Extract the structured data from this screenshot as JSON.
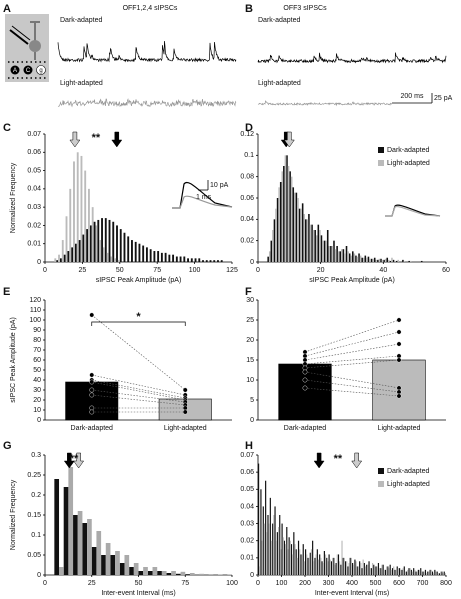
{
  "panels": {
    "A": {
      "label": "A",
      "title": "OFF1,2,4 sIPSCs",
      "trace_labels": [
        "Dark-adapted",
        "Light-adapted"
      ],
      "cell_labels": [
        "A",
        "C",
        "g"
      ]
    },
    "B": {
      "label": "B",
      "title": "OFF3 sIPSCs",
      "trace_labels": [
        "Dark-adapted",
        "Light-adapted"
      ],
      "scale_bar": [
        "200 ms",
        "25 pA"
      ]
    }
  },
  "chart_data": [
    {
      "type": "histogram",
      "panel_label": "C",
      "xlabel": "sIPSC Peak Amplitude (pA)",
      "ylabel": "Normalized Frequency",
      "xlim": [
        0,
        125
      ],
      "xticks": [
        0,
        25,
        50,
        75,
        100,
        125
      ],
      "ylim": [
        0,
        0.07
      ],
      "yticks": [
        0,
        0.01,
        0.02,
        0.03,
        0.04,
        0.05,
        0.06,
        0.07
      ],
      "bins": [
        0,
        2.5,
        5,
        7.5,
        10,
        12.5,
        15,
        17.5,
        20,
        22.5,
        25,
        27.5,
        30,
        32.5,
        35,
        37.5,
        40,
        42.5,
        45,
        47.5,
        50,
        52.5,
        55,
        57.5,
        60,
        62.5,
        65,
        67.5,
        70,
        72.5,
        75,
        77.5,
        80,
        82.5,
        85,
        87.5,
        90,
        92.5,
        95,
        97.5,
        100,
        102.5,
        105,
        107.5,
        110,
        112.5,
        115,
        117.5,
        120,
        122.5,
        125
      ],
      "series": [
        {
          "color": "#111111",
          "values": [
            0,
            0,
            0,
            0.001,
            0.002,
            0.004,
            0.006,
            0.008,
            0.01,
            0.012,
            0.015,
            0.018,
            0.02,
            0.022,
            0.023,
            0.024,
            0.024,
            0.023,
            0.022,
            0.02,
            0.018,
            0.016,
            0.014,
            0.012,
            0.011,
            0.01,
            0.009,
            0.008,
            0.007,
            0.006,
            0.006,
            0.005,
            0.005,
            0.004,
            0.004,
            0.003,
            0.003,
            0.003,
            0.002,
            0.002,
            0.002,
            0.002,
            0.001,
            0.001,
            0.001,
            0.001,
            0.001,
            0.001,
            0,
            0
          ]
        },
        {
          "color": "#bbbbbb",
          "values": [
            0,
            0,
            0.002,
            0.004,
            0.012,
            0.025,
            0.04,
            0.055,
            0.06,
            0.058,
            0.05,
            0.04,
            0.03,
            0.02,
            0.012,
            0.008,
            0.005,
            0.003,
            0.002,
            0.001,
            0,
            0,
            0,
            0,
            0,
            0,
            0,
            0,
            0,
            0,
            0,
            0,
            0,
            0,
            0,
            0,
            0,
            0,
            0,
            0,
            0,
            0,
            0,
            0,
            0,
            0,
            0,
            0,
            0,
            0
          ]
        }
      ],
      "arrows": [
        {
          "x": 20,
          "color": "#cccccc"
        },
        {
          "x": 48,
          "color": "#000000"
        }
      ],
      "annotation": "**",
      "inset_scale": [
        "10 pA",
        "1 ms"
      ]
    },
    {
      "type": "histogram",
      "panel_label": "D",
      "xlabel": "sIPSC Peak Amplitude (pA)",
      "xlim": [
        0,
        60
      ],
      "xticks": [
        0,
        20,
        40,
        60
      ],
      "ylim": [
        0,
        0.12
      ],
      "yticks": [
        0,
        0.02,
        0.04,
        0.06,
        0.08,
        0.1,
        0.12
      ],
      "bins": [
        0,
        1,
        2,
        3,
        4,
        5,
        6,
        7,
        8,
        9,
        10,
        11,
        12,
        13,
        14,
        15,
        16,
        17,
        18,
        19,
        20,
        21,
        22,
        23,
        24,
        25,
        26,
        27,
        28,
        29,
        30,
        31,
        32,
        33,
        34,
        35,
        36,
        37,
        38,
        39,
        40,
        41,
        42,
        43,
        44,
        45,
        46,
        47,
        48,
        49,
        50,
        51,
        52,
        53,
        54,
        55,
        56,
        57,
        58,
        59,
        60
      ],
      "series": [
        {
          "name": "Dark-adapted",
          "color": "#111111",
          "values": [
            0,
            0,
            0,
            0.005,
            0.02,
            0.04,
            0.06,
            0.075,
            0.09,
            0.1,
            0.085,
            0.07,
            0.065,
            0.05,
            0.055,
            0.04,
            0.045,
            0.035,
            0.03,
            0.035,
            0.025,
            0.02,
            0.03,
            0.015,
            0.02,
            0.015,
            0.01,
            0.012,
            0.015,
            0.008,
            0.01,
            0.006,
            0.008,
            0.004,
            0.006,
            0.005,
            0.003,
            0.004,
            0.002,
            0.003,
            0.002,
            0.004,
            0.001,
            0.002,
            0.001,
            0,
            0.002,
            0,
            0.001,
            0,
            0,
            0,
            0.001,
            0,
            0,
            0,
            0,
            0,
            0,
            0
          ]
        },
        {
          "name": "Light-adapted",
          "color": "#bbbbbb",
          "values": [
            0,
            0,
            0,
            0.01,
            0.03,
            0.05,
            0.07,
            0.085,
            0.1,
            0.09,
            0.08,
            0.065,
            0.06,
            0.05,
            0.045,
            0.04,
            0.035,
            0.03,
            0.025,
            0.03,
            0.02,
            0.02,
            0.015,
            0.015,
            0.012,
            0.01,
            0.012,
            0.008,
            0.01,
            0.006,
            0.008,
            0.005,
            0.006,
            0.004,
            0.004,
            0.003,
            0.003,
            0.002,
            0.003,
            0.002,
            0.003,
            0.002,
            0.004,
            0.001,
            0.002,
            0,
            0.001,
            0,
            0.001,
            0,
            0,
            0,
            0,
            0,
            0,
            0,
            0,
            0,
            0,
            0
          ]
        }
      ],
      "arrows": [
        {
          "x": 9,
          "color": "#000000"
        },
        {
          "x": 10,
          "color": "#cccccc"
        }
      ],
      "legend": "top-right"
    },
    {
      "type": "bar",
      "panel_label": "E",
      "ylabel": "sIPSC Peak Amplitude (pA)",
      "categories": [
        "Dark-adapted",
        "Light-adapted"
      ],
      "values": [
        38,
        21
      ],
      "colors": [
        "#000000",
        "#bbbbbb"
      ],
      "ylim": [
        0,
        120
      ],
      "yticks": [
        0,
        10,
        20,
        30,
        40,
        50,
        60,
        70,
        80,
        90,
        100,
        110,
        120
      ],
      "pairs": [
        [
          105,
          30
        ],
        [
          45,
          25
        ],
        [
          40,
          22
        ],
        [
          38,
          20
        ],
        [
          30,
          18
        ],
        [
          25,
          15
        ],
        [
          12,
          12
        ],
        [
          8,
          8
        ]
      ],
      "annotation": "*"
    },
    {
      "type": "bar",
      "panel_label": "F",
      "categories": [
        "Dark-adapted",
        "Light-adapted"
      ],
      "values": [
        14,
        15
      ],
      "colors": [
        "#000000",
        "#bbbbbb"
      ],
      "ylim": [
        0,
        30
      ],
      "yticks": [
        0,
        5,
        10,
        15,
        20,
        25,
        30
      ],
      "pairs": [
        [
          17,
          25
        ],
        [
          16,
          22
        ],
        [
          15,
          19
        ],
        [
          14,
          16
        ],
        [
          13,
          15
        ],
        [
          12,
          8
        ],
        [
          10,
          7
        ],
        [
          8,
          6
        ]
      ]
    },
    {
      "type": "histogram",
      "panel_label": "G",
      "xlabel": "Inter-event Interval (ms)",
      "ylabel": "Normalized Frequency",
      "xlim": [
        0,
        100
      ],
      "xticks": [
        0,
        25,
        50,
        75,
        100
      ],
      "ylim": [
        0,
        0.3
      ],
      "yticks": [
        0,
        0.05,
        0.1,
        0.15,
        0.2,
        0.25,
        0.3
      ],
      "bins": [
        0,
        5,
        10,
        15,
        20,
        25,
        30,
        35,
        40,
        45,
        50,
        55,
        60,
        65,
        70,
        75,
        80,
        85,
        90,
        95,
        100
      ],
      "series": [
        {
          "color": "#111111",
          "values": [
            0,
            0.24,
            0.22,
            0.15,
            0.13,
            0.07,
            0.05,
            0.05,
            0.03,
            0.02,
            0.01,
            0.01,
            0.01,
            0.005,
            0.003,
            0.002,
            0,
            0,
            0,
            0
          ]
        },
        {
          "color": "#aaaaaa",
          "values": [
            0,
            0.02,
            0.27,
            0.16,
            0.14,
            0.11,
            0.08,
            0.06,
            0.05,
            0.03,
            0.02,
            0.02,
            0.01,
            0.01,
            0.008,
            0.005,
            0.003,
            0.002,
            0.001,
            0.001
          ]
        }
      ],
      "arrows": [
        {
          "x": 13,
          "color": "#000000"
        },
        {
          "x": 18,
          "color": "#cccccc"
        }
      ],
      "annotation": "**"
    },
    {
      "type": "histogram",
      "panel_label": "H",
      "xlabel": "Inter-event Interval (ms)",
      "xlim": [
        0,
        800
      ],
      "xticks": [
        0,
        100,
        200,
        300,
        400,
        500,
        600,
        700,
        800
      ],
      "ylim": [
        0,
        0.07
      ],
      "yticks": [
        0,
        0.01,
        0.02,
        0.03,
        0.04,
        0.05,
        0.06,
        0.07
      ],
      "bins": [
        0,
        10,
        20,
        30,
        40,
        50,
        60,
        70,
        80,
        90,
        100,
        110,
        120,
        130,
        140,
        150,
        160,
        170,
        180,
        190,
        200,
        210,
        220,
        230,
        240,
        250,
        260,
        270,
        280,
        290,
        300,
        310,
        320,
        330,
        340,
        350,
        360,
        370,
        380,
        390,
        400,
        410,
        420,
        430,
        440,
        450,
        460,
        470,
        480,
        490,
        500,
        510,
        520,
        530,
        540,
        550,
        560,
        570,
        580,
        590,
        600,
        610,
        620,
        630,
        640,
        650,
        660,
        670,
        680,
        690,
        700,
        710,
        720,
        730,
        740,
        750,
        760,
        770,
        780,
        790,
        800
      ],
      "series": [
        {
          "name": "Dark-adapted",
          "color": "#111111",
          "values": [
            0.065,
            0.05,
            0.04,
            0.055,
            0.035,
            0.045,
            0.03,
            0.04,
            0.025,
            0.035,
            0.03,
            0.02,
            0.028,
            0.022,
            0.018,
            0.025,
            0.015,
            0.02,
            0.012,
            0.018,
            0.015,
            0.01,
            0.013,
            0.02,
            0.01,
            0.015,
            0.012,
            0.008,
            0.014,
            0.01,
            0.012,
            0.008,
            0.01,
            0.007,
            0.012,
            0.006,
            0.01,
            0.008,
            0.005,
            0.01,
            0.007,
            0.009,
            0.005,
            0.008,
            0.004,
            0.007,
            0.006,
            0.008,
            0.004,
            0.006,
            0.005,
            0.007,
            0.004,
            0.006,
            0.003,
            0.005,
            0.006,
            0.004,
            0.003,
            0.005,
            0.004,
            0.003,
            0.005,
            0.002,
            0.004,
            0.003,
            0.004,
            0.002,
            0.003,
            0.004,
            0.002,
            0.003,
            0.002,
            0.003,
            0.002,
            0.003,
            0.002,
            0.001,
            0.002,
            0.002
          ]
        },
        {
          "name": "Light-adapted",
          "color": "#bbbbbb",
          "values": [
            0.005,
            0.02,
            0.03,
            0.025,
            0.03,
            0.02,
            0.035,
            0.02,
            0.028,
            0.015,
            0.022,
            0.018,
            0.015,
            0.02,
            0.012,
            0.018,
            0.01,
            0.015,
            0.012,
            0.008,
            0.012,
            0.01,
            0.015,
            0.008,
            0.012,
            0.009,
            0.01,
            0.007,
            0.012,
            0.008,
            0.009,
            0.01,
            0.006,
            0.012,
            0.008,
            0.02,
            0.01,
            0.008,
            0.007,
            0.01,
            0.006,
            0.008,
            0.005,
            0.007,
            0.009,
            0.005,
            0.006,
            0.004,
            0.007,
            0.005,
            0.005,
            0.004,
            0.006,
            0.003,
            0.005,
            0.004,
            0.003,
            0.005,
            0.003,
            0.004,
            0.003,
            0.004,
            0.002,
            0.003,
            0.004,
            0.002,
            0.003,
            0.002,
            0.003,
            0.002,
            0.002,
            0.001,
            0.002,
            0.003,
            0.001,
            0.002,
            0.001,
            0.002,
            0.001,
            0.001
          ]
        }
      ],
      "arrows": [
        {
          "x": 260,
          "color": "#000000"
        },
        {
          "x": 420,
          "color": "#cccccc"
        }
      ],
      "annotation": "**",
      "legend": "top-right"
    }
  ]
}
